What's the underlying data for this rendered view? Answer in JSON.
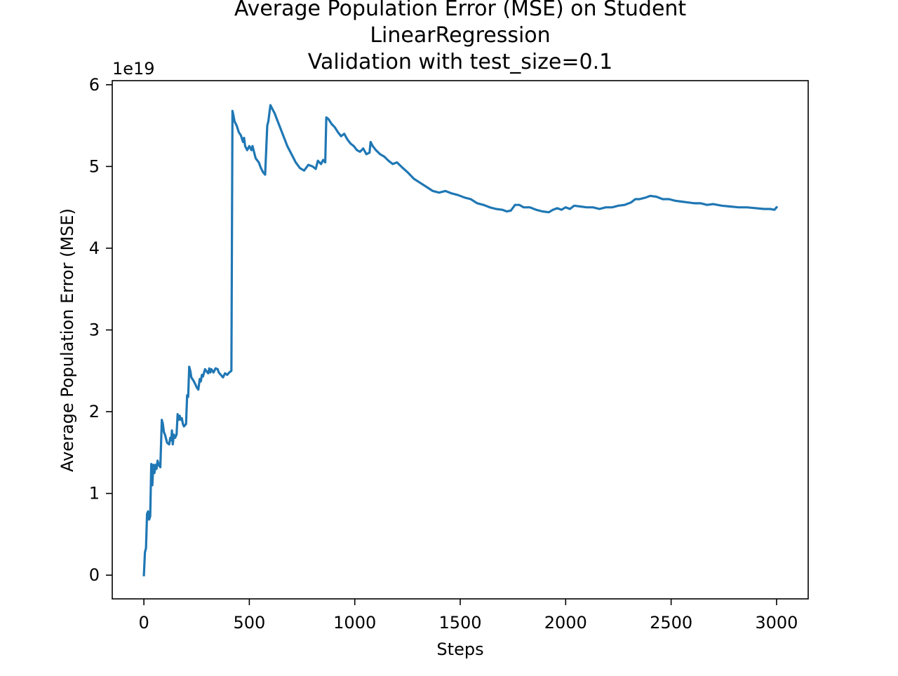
{
  "chart_data": {
    "type": "line",
    "title_lines": [
      "Average Population Error (MSE) on Student",
      "LinearRegression",
      "Validation with test_size=0.1"
    ],
    "xlabel": "Steps",
    "ylabel": "Average Population Error (MSE)",
    "y_offset_label": "1e19",
    "xlim": [
      -150,
      3150
    ],
    "ylim": [
      -0.29,
      6.05
    ],
    "x_ticks": [
      0,
      500,
      1000,
      1500,
      2000,
      2500,
      3000
    ],
    "x_tick_labels": [
      "0",
      "500",
      "1000",
      "1500",
      "2000",
      "2500",
      "3000"
    ],
    "y_ticks": [
      0,
      1,
      2,
      3,
      4,
      5,
      6
    ],
    "y_tick_labels": [
      "0",
      "1",
      "2",
      "3",
      "4",
      "5",
      "6"
    ],
    "grid": false,
    "line_color": "#1f77b4",
    "series": [
      {
        "points": [
          [
            0,
            0.0
          ],
          [
            5,
            0.28
          ],
          [
            10,
            0.33
          ],
          [
            15,
            0.75
          ],
          [
            20,
            0.78
          ],
          [
            25,
            0.68
          ],
          [
            30,
            0.72
          ],
          [
            35,
            1.36
          ],
          [
            40,
            1.1
          ],
          [
            45,
            1.35
          ],
          [
            50,
            1.25
          ],
          [
            55,
            1.35
          ],
          [
            60,
            1.3
          ],
          [
            65,
            1.4
          ],
          [
            70,
            1.35
          ],
          [
            78,
            1.32
          ],
          [
            85,
            1.9
          ],
          [
            90,
            1.85
          ],
          [
            95,
            1.75
          ],
          [
            100,
            1.72
          ],
          [
            110,
            1.62
          ],
          [
            120,
            1.6
          ],
          [
            125,
            1.68
          ],
          [
            130,
            1.65
          ],
          [
            133,
            1.77
          ],
          [
            137,
            1.6
          ],
          [
            142,
            1.72
          ],
          [
            148,
            1.68
          ],
          [
            155,
            1.72
          ],
          [
            160,
            1.97
          ],
          [
            165,
            1.9
          ],
          [
            170,
            1.95
          ],
          [
            175,
            1.9
          ],
          [
            180,
            1.92
          ],
          [
            185,
            1.85
          ],
          [
            190,
            1.82
          ],
          [
            200,
            1.85
          ],
          [
            205,
            2.2
          ],
          [
            210,
            2.18
          ],
          [
            215,
            2.55
          ],
          [
            220,
            2.5
          ],
          [
            225,
            2.42
          ],
          [
            235,
            2.38
          ],
          [
            245,
            2.33
          ],
          [
            250,
            2.3
          ],
          [
            258,
            2.27
          ],
          [
            265,
            2.4
          ],
          [
            270,
            2.37
          ],
          [
            275,
            2.45
          ],
          [
            280,
            2.43
          ],
          [
            290,
            2.52
          ],
          [
            295,
            2.5
          ],
          [
            305,
            2.47
          ],
          [
            310,
            2.53
          ],
          [
            315,
            2.48
          ],
          [
            320,
            2.52
          ],
          [
            330,
            2.48
          ],
          [
            340,
            2.53
          ],
          [
            350,
            2.52
          ],
          [
            355,
            2.48
          ],
          [
            365,
            2.45
          ],
          [
            375,
            2.42
          ],
          [
            385,
            2.47
          ],
          [
            395,
            2.45
          ],
          [
            405,
            2.48
          ],
          [
            415,
            2.5
          ],
          [
            420,
            5.68
          ],
          [
            425,
            5.62
          ],
          [
            430,
            5.55
          ],
          [
            440,
            5.5
          ],
          [
            450,
            5.42
          ],
          [
            460,
            5.38
          ],
          [
            470,
            5.3
          ],
          [
            475,
            5.35
          ],
          [
            480,
            5.25
          ],
          [
            490,
            5.2
          ],
          [
            500,
            5.25
          ],
          [
            510,
            5.2
          ],
          [
            515,
            5.25
          ],
          [
            520,
            5.2
          ],
          [
            530,
            5.1
          ],
          [
            545,
            5.05
          ],
          [
            555,
            4.98
          ],
          [
            565,
            4.93
          ],
          [
            575,
            4.9
          ],
          [
            585,
            5.5
          ],
          [
            590,
            5.55
          ],
          [
            600,
            5.75
          ],
          [
            610,
            5.7
          ],
          [
            620,
            5.65
          ],
          [
            635,
            5.55
          ],
          [
            650,
            5.45
          ],
          [
            665,
            5.35
          ],
          [
            680,
            5.25
          ],
          [
            700,
            5.15
          ],
          [
            720,
            5.05
          ],
          [
            740,
            4.98
          ],
          [
            760,
            4.95
          ],
          [
            780,
            5.02
          ],
          [
            800,
            5.0
          ],
          [
            815,
            4.97
          ],
          [
            825,
            5.07
          ],
          [
            840,
            5.03
          ],
          [
            850,
            5.08
          ],
          [
            860,
            5.05
          ],
          [
            865,
            5.6
          ],
          [
            875,
            5.58
          ],
          [
            890,
            5.52
          ],
          [
            905,
            5.48
          ],
          [
            920,
            5.42
          ],
          [
            935,
            5.37
          ],
          [
            950,
            5.4
          ],
          [
            965,
            5.33
          ],
          [
            980,
            5.28
          ],
          [
            995,
            5.25
          ],
          [
            1010,
            5.2
          ],
          [
            1025,
            5.18
          ],
          [
            1040,
            5.22
          ],
          [
            1055,
            5.15
          ],
          [
            1070,
            5.17
          ],
          [
            1075,
            5.3
          ],
          [
            1085,
            5.25
          ],
          [
            1100,
            5.2
          ],
          [
            1120,
            5.15
          ],
          [
            1140,
            5.12
          ],
          [
            1160,
            5.07
          ],
          [
            1180,
            5.03
          ],
          [
            1200,
            5.05
          ],
          [
            1220,
            5.0
          ],
          [
            1250,
            4.93
          ],
          [
            1280,
            4.85
          ],
          [
            1310,
            4.8
          ],
          [
            1340,
            4.75
          ],
          [
            1370,
            4.7
          ],
          [
            1400,
            4.68
          ],
          [
            1430,
            4.7
          ],
          [
            1460,
            4.67
          ],
          [
            1490,
            4.65
          ],
          [
            1520,
            4.62
          ],
          [
            1550,
            4.6
          ],
          [
            1580,
            4.55
          ],
          [
            1610,
            4.53
          ],
          [
            1640,
            4.5
          ],
          [
            1670,
            4.48
          ],
          [
            1700,
            4.47
          ],
          [
            1720,
            4.45
          ],
          [
            1740,
            4.46
          ],
          [
            1760,
            4.53
          ],
          [
            1780,
            4.53
          ],
          [
            1800,
            4.5
          ],
          [
            1830,
            4.5
          ],
          [
            1860,
            4.47
          ],
          [
            1890,
            4.45
          ],
          [
            1920,
            4.44
          ],
          [
            1940,
            4.47
          ],
          [
            1960,
            4.49
          ],
          [
            1980,
            4.47
          ],
          [
            2000,
            4.5
          ],
          [
            2020,
            4.48
          ],
          [
            2040,
            4.52
          ],
          [
            2070,
            4.51
          ],
          [
            2100,
            4.5
          ],
          [
            2130,
            4.5
          ],
          [
            2160,
            4.48
          ],
          [
            2190,
            4.5
          ],
          [
            2220,
            4.5
          ],
          [
            2250,
            4.52
          ],
          [
            2280,
            4.53
          ],
          [
            2310,
            4.56
          ],
          [
            2330,
            4.6
          ],
          [
            2350,
            4.6
          ],
          [
            2380,
            4.62
          ],
          [
            2400,
            4.64
          ],
          [
            2430,
            4.63
          ],
          [
            2460,
            4.6
          ],
          [
            2490,
            4.6
          ],
          [
            2520,
            4.58
          ],
          [
            2550,
            4.57
          ],
          [
            2580,
            4.56
          ],
          [
            2610,
            4.55
          ],
          [
            2640,
            4.55
          ],
          [
            2670,
            4.53
          ],
          [
            2700,
            4.54
          ],
          [
            2740,
            4.52
          ],
          [
            2780,
            4.51
          ],
          [
            2820,
            4.5
          ],
          [
            2860,
            4.5
          ],
          [
            2900,
            4.49
          ],
          [
            2940,
            4.48
          ],
          [
            2970,
            4.48
          ],
          [
            2990,
            4.47
          ],
          [
            3000,
            4.5
          ]
        ]
      }
    ]
  }
}
